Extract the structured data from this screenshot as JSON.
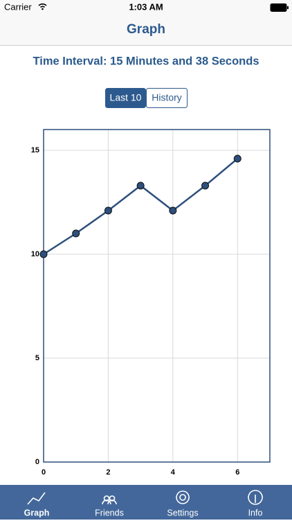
{
  "status_bar": {
    "carrier": "Carrier",
    "time": "1:03 AM"
  },
  "nav_bar": {
    "title": "Graph"
  },
  "interval": "Time Interval: 15 Minutes and 38 Seconds",
  "segmented_control": {
    "options": [
      "Last 10",
      "History"
    ],
    "selected": 0
  },
  "chart_data": {
    "type": "line",
    "x": [
      0,
      1,
      2,
      3,
      4,
      5,
      6
    ],
    "series": [
      {
        "color": "#2d4f7c",
        "values": [
          10,
          11,
          12.1,
          13.3,
          12.1,
          13.3,
          14.6
        ]
      }
    ],
    "xlim": [
      0,
      7
    ],
    "ylim": [
      0,
      16
    ],
    "xticks": [
      0,
      2,
      4,
      6
    ],
    "yticks": [
      0,
      5,
      10,
      15
    ],
    "grid": true
  },
  "tab_bar": {
    "tabs": [
      "Graph",
      "Friends",
      "Settings",
      "Info"
    ],
    "selected": 0
  }
}
